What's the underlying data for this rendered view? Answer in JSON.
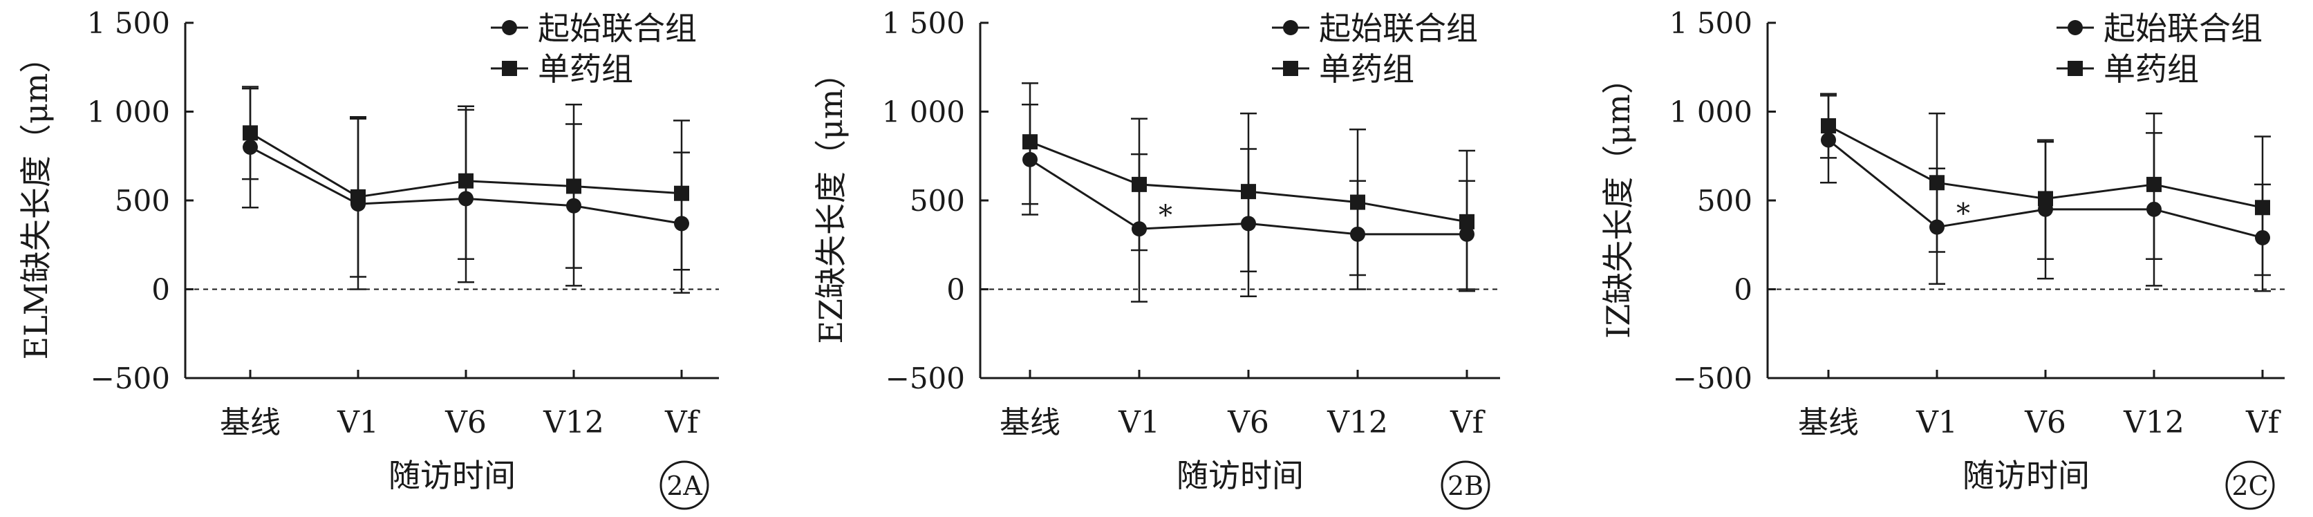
{
  "chart_data": [
    {
      "type": "line",
      "panel_label": "2A",
      "ylabel": "ELM缺失长度（μm）",
      "xlabel": "随访时间",
      "categories": [
        "基线",
        "V1",
        "V6",
        "V12",
        "Vf"
      ],
      "ylim": [
        -500,
        1500
      ],
      "yticks": [
        -500,
        0,
        500,
        1000,
        1500
      ],
      "ytick_labels": [
        "−500",
        "0",
        "500",
        "1 000",
        "1 500"
      ],
      "zero_line": "dashed",
      "legend_position": "top-right",
      "annotations": [],
      "series": [
        {
          "name": "起始联合组",
          "marker": "circle",
          "values": [
            800,
            480,
            510,
            470,
            370
          ],
          "err_low": [
            460,
            0,
            40,
            20,
            -20
          ],
          "err_high": [
            1130,
            970,
            1010,
            930,
            950
          ]
        },
        {
          "name": "单药组",
          "marker": "square",
          "values": [
            880,
            520,
            610,
            580,
            540
          ],
          "err_low": [
            620,
            70,
            170,
            120,
            110
          ],
          "err_high": [
            1140,
            960,
            1030,
            1040,
            770
          ]
        }
      ]
    },
    {
      "type": "line",
      "panel_label": "2B",
      "ylabel": "EZ缺失长度（μm）",
      "xlabel": "随访时间",
      "categories": [
        "基线",
        "V1",
        "V6",
        "V12",
        "Vf"
      ],
      "ylim": [
        -500,
        1500
      ],
      "yticks": [
        -500,
        0,
        500,
        1000,
        1500
      ],
      "ytick_labels": [
        "−500",
        "0",
        "500",
        "1 000",
        "1 500"
      ],
      "zero_line": "dashed",
      "legend_position": "top-right",
      "annotations": [
        {
          "category": "V1",
          "text": "*"
        }
      ],
      "series": [
        {
          "name": "起始联合组",
          "marker": "circle",
          "values": [
            730,
            340,
            370,
            310,
            310
          ],
          "err_low": [
            420,
            -70,
            -40,
            0,
            -10
          ],
          "err_high": [
            1040,
            760,
            790,
            610,
            610
          ]
        },
        {
          "name": "单药组",
          "marker": "square",
          "values": [
            830,
            590,
            550,
            490,
            380
          ],
          "err_low": [
            480,
            220,
            100,
            80,
            0
          ],
          "err_high": [
            1160,
            960,
            990,
            900,
            780
          ]
        }
      ]
    },
    {
      "type": "line",
      "panel_label": "2C",
      "ylabel": "IZ缺失长度（μm）",
      "xlabel": "随访时间",
      "categories": [
        "基线",
        "V1",
        "V6",
        "V12",
        "Vf"
      ],
      "ylim": [
        -500,
        1500
      ],
      "yticks": [
        -500,
        0,
        500,
        1000,
        1500
      ],
      "ytick_labels": [
        "−500",
        "0",
        "500",
        "1 000",
        "1 500"
      ],
      "zero_line": "dashed",
      "legend_position": "top-right",
      "annotations": [
        {
          "category": "V1",
          "text": "*"
        }
      ],
      "series": [
        {
          "name": "起始联合组",
          "marker": "circle",
          "values": [
            840,
            350,
            450,
            450,
            290
          ],
          "err_low": [
            600,
            30,
            60,
            20,
            -10
          ],
          "err_high": [
            1090,
            680,
            840,
            880,
            590
          ]
        },
        {
          "name": "单药组",
          "marker": "square",
          "values": [
            920,
            600,
            510,
            590,
            460
          ],
          "err_low": [
            740,
            210,
            170,
            170,
            80
          ],
          "err_high": [
            1100,
            990,
            830,
            990,
            860
          ]
        }
      ]
    }
  ]
}
